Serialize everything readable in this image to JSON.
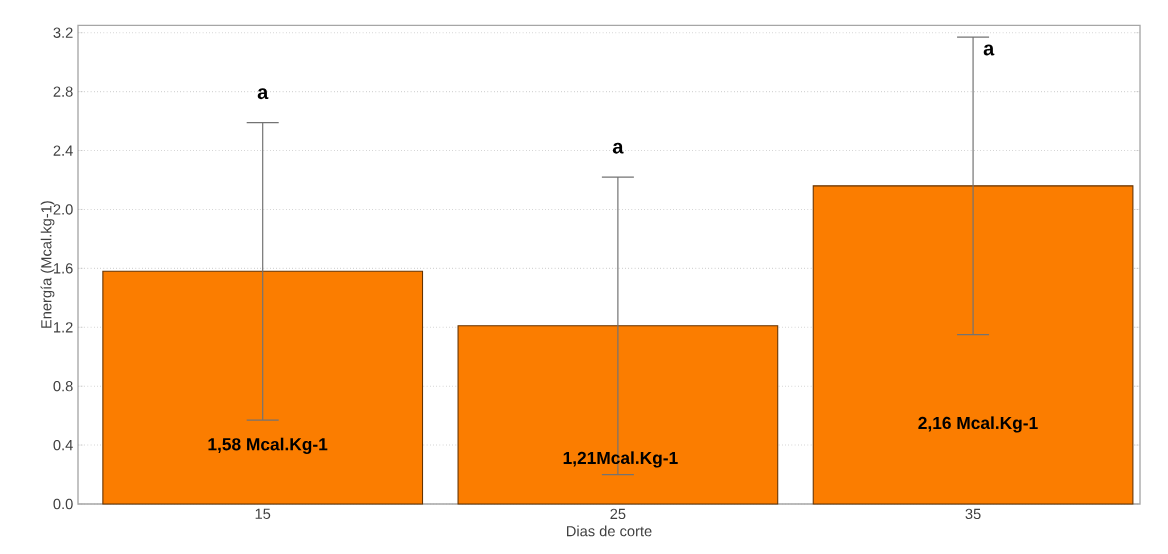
{
  "chart_data": {
    "type": "bar",
    "xlabel": "Dias de corte",
    "ylabel": "Energía (Mcal.kg-1)",
    "categories": [
      "15",
      "25",
      "35"
    ],
    "values": [
      1.58,
      1.21,
      2.16
    ],
    "errors": [
      1.01,
      1.01,
      1.01
    ],
    "value_labels": [
      "1,58 Mcal.Kg-1",
      "1,21Mcal.Kg-1",
      "2,16 Mcal.Kg-1"
    ],
    "color": "#fb7d00",
    "ylim": [
      0,
      3.25
    ],
    "yticks": [
      {
        "value": 0,
        "label": "0.0"
      },
      0.4,
      0.8,
      1.2,
      1.6,
      {
        "value": 2.0,
        "label": "2.0"
      },
      2.4,
      2.8,
      3.2
    ],
    "grid": "y",
    "annotations": [
      "a",
      "a",
      "a"
    ]
  }
}
